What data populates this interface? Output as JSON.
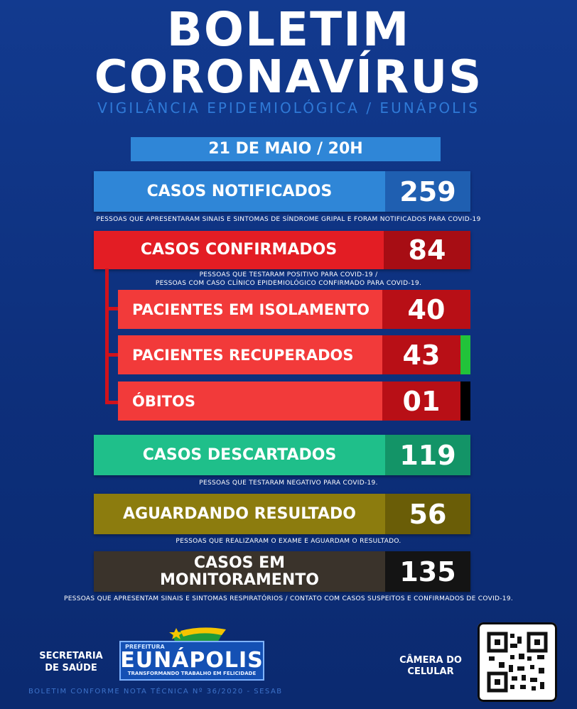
{
  "header": {
    "title_line1": "BOLETIM",
    "title_line2": "CORONAVÍRUS",
    "subtitle": "VIGILÂNCIA EPIDEMIOLÓGICA / EUNÁPOLIS",
    "date": "21 DE MAIO / 20H"
  },
  "stats": {
    "notificados": {
      "label": "CASOS NOTIFICADOS",
      "value": "259",
      "note": "PESSOAS QUE APRESENTARAM SINAIS E SINTOMAS DE SÍNDROME GRIPAL E FORAM NOTIFICADOS PARA COVID-19"
    },
    "confirmados": {
      "label": "CASOS CONFIRMADOS",
      "value": "84",
      "note_line1": "PESSOAS QUE TESTARAM POSITIVO PARA COVID-19 /",
      "note_line2": "PESSOAS COM CASO CLÍNICO EPIDEMIOLÓGICO CONFIRMADO PARA COVID-19."
    },
    "isolamento": {
      "label": "PACIENTES EM ISOLAMENTO",
      "value": "40"
    },
    "recuperados": {
      "label": "PACIENTES RECUPERADOS",
      "value": "43"
    },
    "obitos": {
      "label": "ÓBITOS",
      "value": "01"
    },
    "descartados": {
      "label": "CASOS DESCARTADOS",
      "value": "119",
      "note": "PESSOAS QUE TESTARAM NEGATIVO PARA COVID-19."
    },
    "aguardando": {
      "label": "AGUARDANDO RESULTADO",
      "value": "56",
      "note": "PESSOAS QUE REALIZARAM O EXAME E AGUARDAM O RESULTADO."
    },
    "monitoramento": {
      "label_line1": "CASOS EM",
      "label_line2": "MONITORAMENTO",
      "value": "135",
      "note": "PESSOAS QUE APRESENTAM SINAIS E SINTOMAS RESPIRATÓRIOS / CONTATO COM CASOS SUSPEITOS  E CONFIRMADOS DE COVID-19."
    }
  },
  "colors": {
    "blue": "#2f86d7",
    "blue_dark": "#1f5fb1",
    "red": "#e31d24",
    "red_dark": "#a70d14",
    "green": "#1fbf8a",
    "green_dark": "#139467",
    "olive": "#8c7c0e",
    "olive_dark": "#6a5d07",
    "dark": "#3a332b",
    "dark_num": "#141414",
    "recovered_tab": "#22c33a",
    "death_tab": "#000000"
  },
  "footer": {
    "secretaria_line1": "SECRETARIA",
    "secretaria_line2": "DE SAÚDE",
    "logo_prefeitura": "PREFEITURA",
    "logo_name": "EUNÁPOLIS",
    "logo_slogan": "TRANSFORMANDO TRABALHO EM FELICIDADE",
    "camera_line1": "CÂMERA DO",
    "camera_line2": "CELULAR",
    "bottom_note": "BOLETIM CONFORME NOTA TÉCNICA Nº 36/2020 - SESAB",
    "qr_icon": "qr-code-icon"
  }
}
